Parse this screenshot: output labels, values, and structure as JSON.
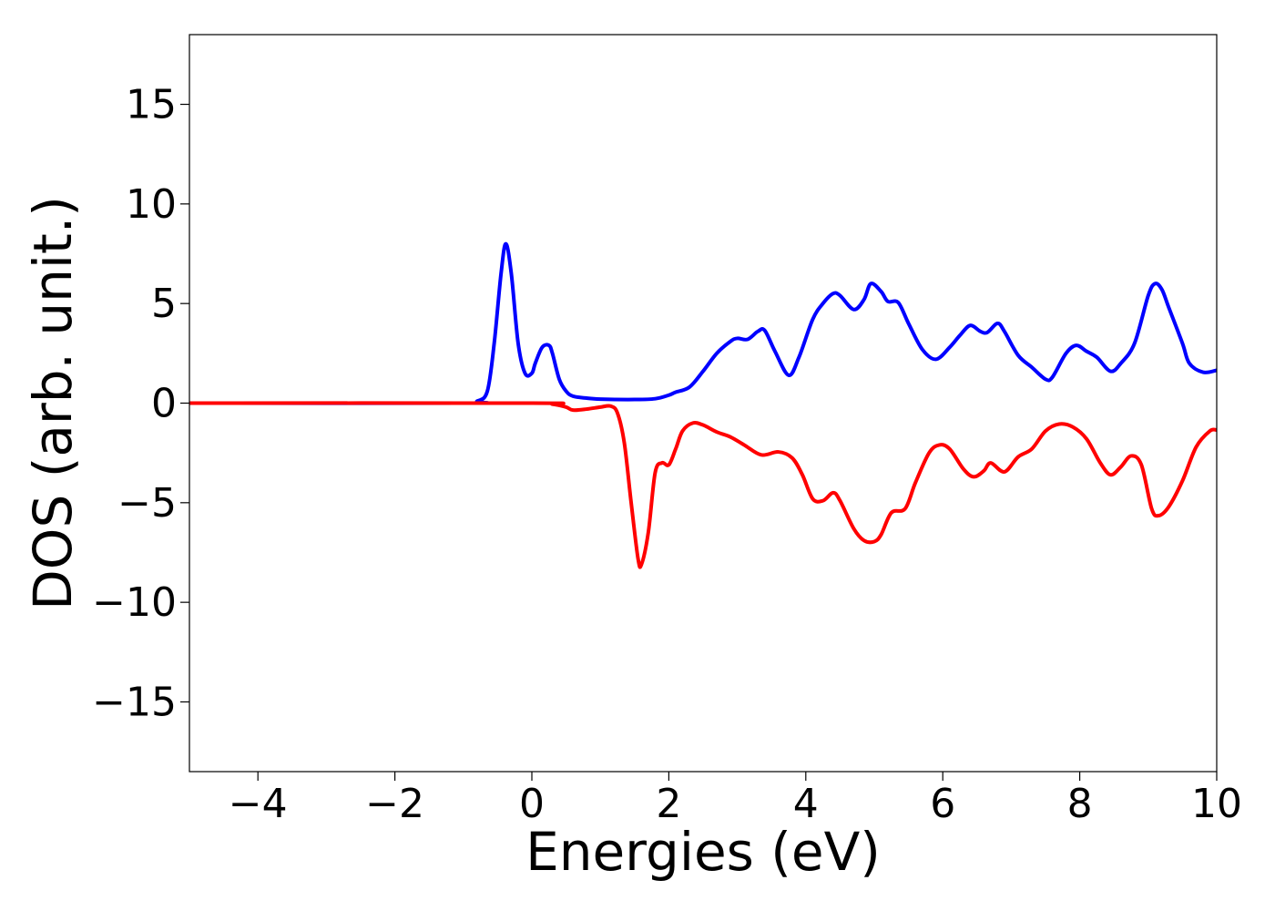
{
  "chart_data": {
    "type": "line",
    "title": "",
    "xlabel": "Energies (eV)",
    "ylabel": "DOS (arb. unit.)",
    "xlim": [
      -5,
      10
    ],
    "ylim": [
      -18.5,
      18.5
    ],
    "xticks": [
      -4,
      -2,
      0,
      2,
      4,
      6,
      8,
      10
    ],
    "yticks": [
      -15,
      -10,
      -5,
      0,
      5,
      10,
      15
    ],
    "xtick_labels": [
      "−4",
      "−2",
      "0",
      "2",
      "4",
      "6",
      "8",
      "10"
    ],
    "ytick_labels": [
      "−15",
      "−10",
      "−5",
      "0",
      "5",
      "10",
      "15"
    ],
    "grid": false,
    "legend": "none",
    "series": [
      {
        "color": "#0000ff",
        "x": [
          -5.0,
          -1.0,
          -0.8,
          -0.65,
          -0.55,
          -0.45,
          -0.38,
          -0.3,
          -0.2,
          -0.1,
          0.0,
          0.05,
          0.15,
          0.25,
          0.3,
          0.4,
          0.5,
          0.6,
          0.8,
          1.0,
          1.5,
          1.8,
          2.0,
          2.1,
          2.3,
          2.5,
          2.7,
          2.9,
          3.0,
          3.15,
          3.3,
          3.4,
          3.55,
          3.75,
          3.9,
          4.1,
          4.25,
          4.4,
          4.5,
          4.7,
          4.85,
          4.95,
          5.1,
          5.2,
          5.35,
          5.5,
          5.7,
          5.9,
          6.1,
          6.25,
          6.4,
          6.55,
          6.65,
          6.8,
          6.9,
          7.1,
          7.3,
          7.5,
          7.6,
          7.8,
          7.95,
          8.1,
          8.25,
          8.45,
          8.6,
          8.8,
          9.0,
          9.1,
          9.2,
          9.3,
          9.5,
          9.6,
          9.8,
          10.0
        ],
        "values": [
          0.0,
          0.0,
          0.1,
          0.6,
          3.0,
          6.5,
          8.0,
          6.5,
          3.0,
          1.5,
          1.5,
          2.0,
          2.8,
          2.9,
          2.5,
          1.2,
          0.6,
          0.35,
          0.25,
          0.2,
          0.18,
          0.22,
          0.4,
          0.55,
          0.8,
          1.6,
          2.5,
          3.1,
          3.25,
          3.2,
          3.6,
          3.65,
          2.6,
          1.4,
          2.3,
          4.2,
          5.0,
          5.5,
          5.4,
          4.7,
          5.2,
          6.0,
          5.6,
          5.1,
          5.05,
          4.0,
          2.7,
          2.2,
          2.8,
          3.4,
          3.9,
          3.6,
          3.55,
          4.0,
          3.6,
          2.4,
          1.8,
          1.2,
          1.3,
          2.5,
          2.9,
          2.6,
          2.3,
          1.6,
          2.0,
          3.0,
          5.4,
          6.0,
          5.7,
          4.8,
          3.0,
          2.0,
          1.55,
          1.65
        ]
      },
      {
        "color": "#ff0000",
        "x": [
          -5.0,
          0.0,
          0.3,
          0.5,
          0.6,
          0.8,
          1.0,
          1.15,
          1.25,
          1.35,
          1.45,
          1.55,
          1.6,
          1.7,
          1.8,
          1.9,
          2.0,
          2.1,
          2.2,
          2.35,
          2.5,
          2.7,
          2.9,
          3.1,
          3.35,
          3.6,
          3.8,
          3.95,
          4.1,
          4.25,
          4.4,
          4.5,
          4.7,
          4.85,
          5.0,
          5.1,
          5.25,
          5.45,
          5.6,
          5.8,
          5.95,
          6.1,
          6.3,
          6.45,
          6.6,
          6.7,
          6.9,
          7.1,
          7.3,
          7.5,
          7.7,
          7.9,
          8.1,
          8.3,
          8.45,
          8.6,
          8.75,
          8.9,
          9.05,
          9.15,
          9.3,
          9.5,
          9.7,
          9.9,
          10.0
        ],
        "values": [
          0.0,
          0.0,
          -0.05,
          -0.2,
          -0.35,
          -0.3,
          -0.2,
          -0.15,
          -0.5,
          -2.0,
          -5.0,
          -7.8,
          -8.1,
          -6.5,
          -3.5,
          -3.0,
          -3.1,
          -2.3,
          -1.4,
          -1.0,
          -1.1,
          -1.45,
          -1.7,
          -2.1,
          -2.6,
          -2.45,
          -2.75,
          -3.6,
          -4.8,
          -4.9,
          -4.5,
          -4.9,
          -6.3,
          -6.9,
          -6.95,
          -6.6,
          -5.5,
          -5.3,
          -4.0,
          -2.5,
          -2.1,
          -2.3,
          -3.3,
          -3.7,
          -3.4,
          -3.0,
          -3.45,
          -2.7,
          -2.3,
          -1.4,
          -1.05,
          -1.2,
          -1.8,
          -3.0,
          -3.6,
          -3.2,
          -2.65,
          -3.1,
          -5.3,
          -5.65,
          -5.2,
          -3.9,
          -2.2,
          -1.4,
          -1.35
        ]
      }
    ]
  }
}
